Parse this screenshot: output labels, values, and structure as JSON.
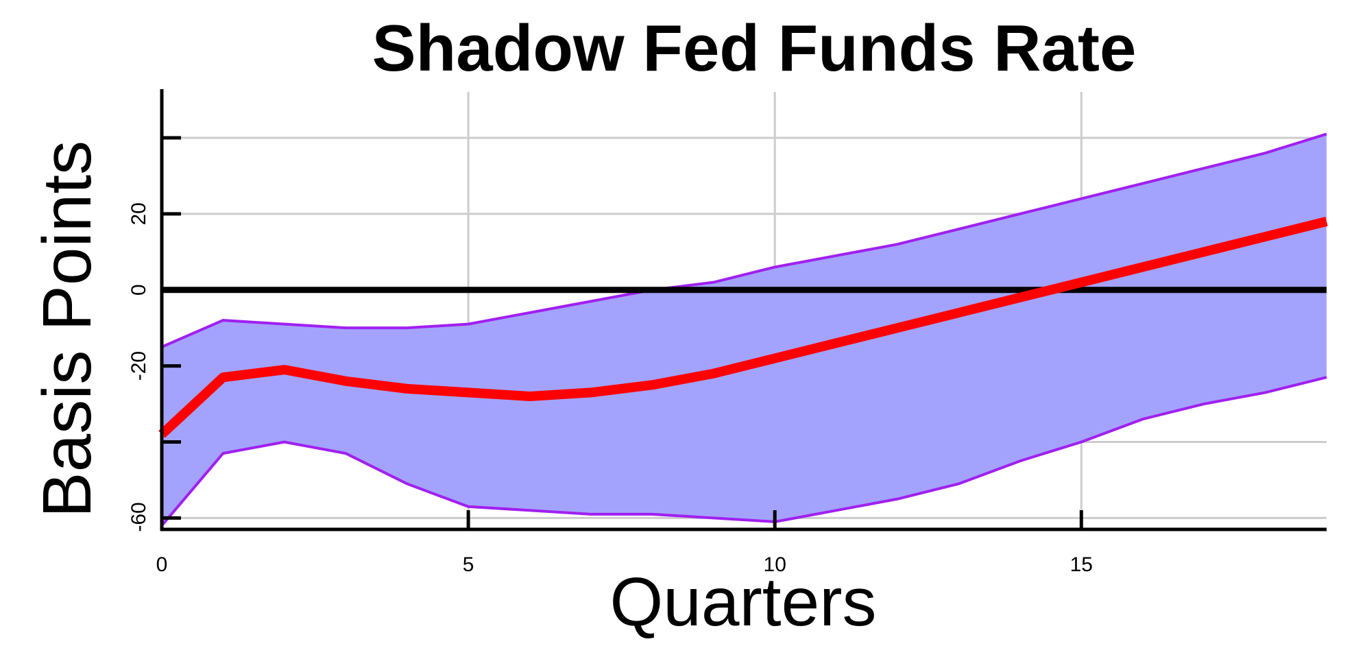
{
  "chart_data": {
    "type": "line",
    "title": "Shadow Fed Funds Rate",
    "xlabel": "Quarters",
    "ylabel": "Basis Points",
    "xlim": [
      0,
      19
    ],
    "ylim": [
      -63,
      51
    ],
    "x_ticks": [
      0,
      5,
      10,
      15
    ],
    "y_ticks": [
      -60,
      -40,
      -20,
      0,
      20,
      40
    ],
    "y_tick_labels": [
      "-60",
      "",
      "-20",
      "0",
      "20",
      ""
    ],
    "grid": true,
    "reference_line": 0,
    "x": [
      0,
      1,
      2,
      3,
      4,
      5,
      6,
      7,
      8,
      9,
      10,
      11,
      12,
      13,
      14,
      15,
      16,
      17,
      18,
      19
    ],
    "series": [
      {
        "role": "median",
        "values": [
          -38,
          -23,
          -21,
          -24,
          -26,
          -27,
          -28,
          -27,
          -25,
          -22,
          -18,
          -14,
          -10,
          -6,
          -2,
          2,
          6,
          10,
          14,
          18
        ]
      },
      {
        "role": "upper",
        "values": [
          -15,
          -8,
          -9,
          -10,
          -10,
          -9,
          -6,
          -3,
          0,
          2,
          6,
          9,
          12,
          16,
          20,
          24,
          28,
          32,
          36,
          41
        ]
      },
      {
        "role": "lower",
        "values": [
          -62,
          -43,
          -40,
          -43,
          -51,
          -57,
          -58,
          -59,
          -59,
          -60,
          -61,
          -58,
          -55,
          -51,
          -45,
          -40,
          -34,
          -30,
          -27,
          -23
        ]
      }
    ],
    "colors": {
      "median": "#ff0000",
      "band_fill": "#a3a3fe",
      "band_edge": "#a020f0",
      "zero_line": "#000000",
      "grid": "#cccccc"
    }
  }
}
